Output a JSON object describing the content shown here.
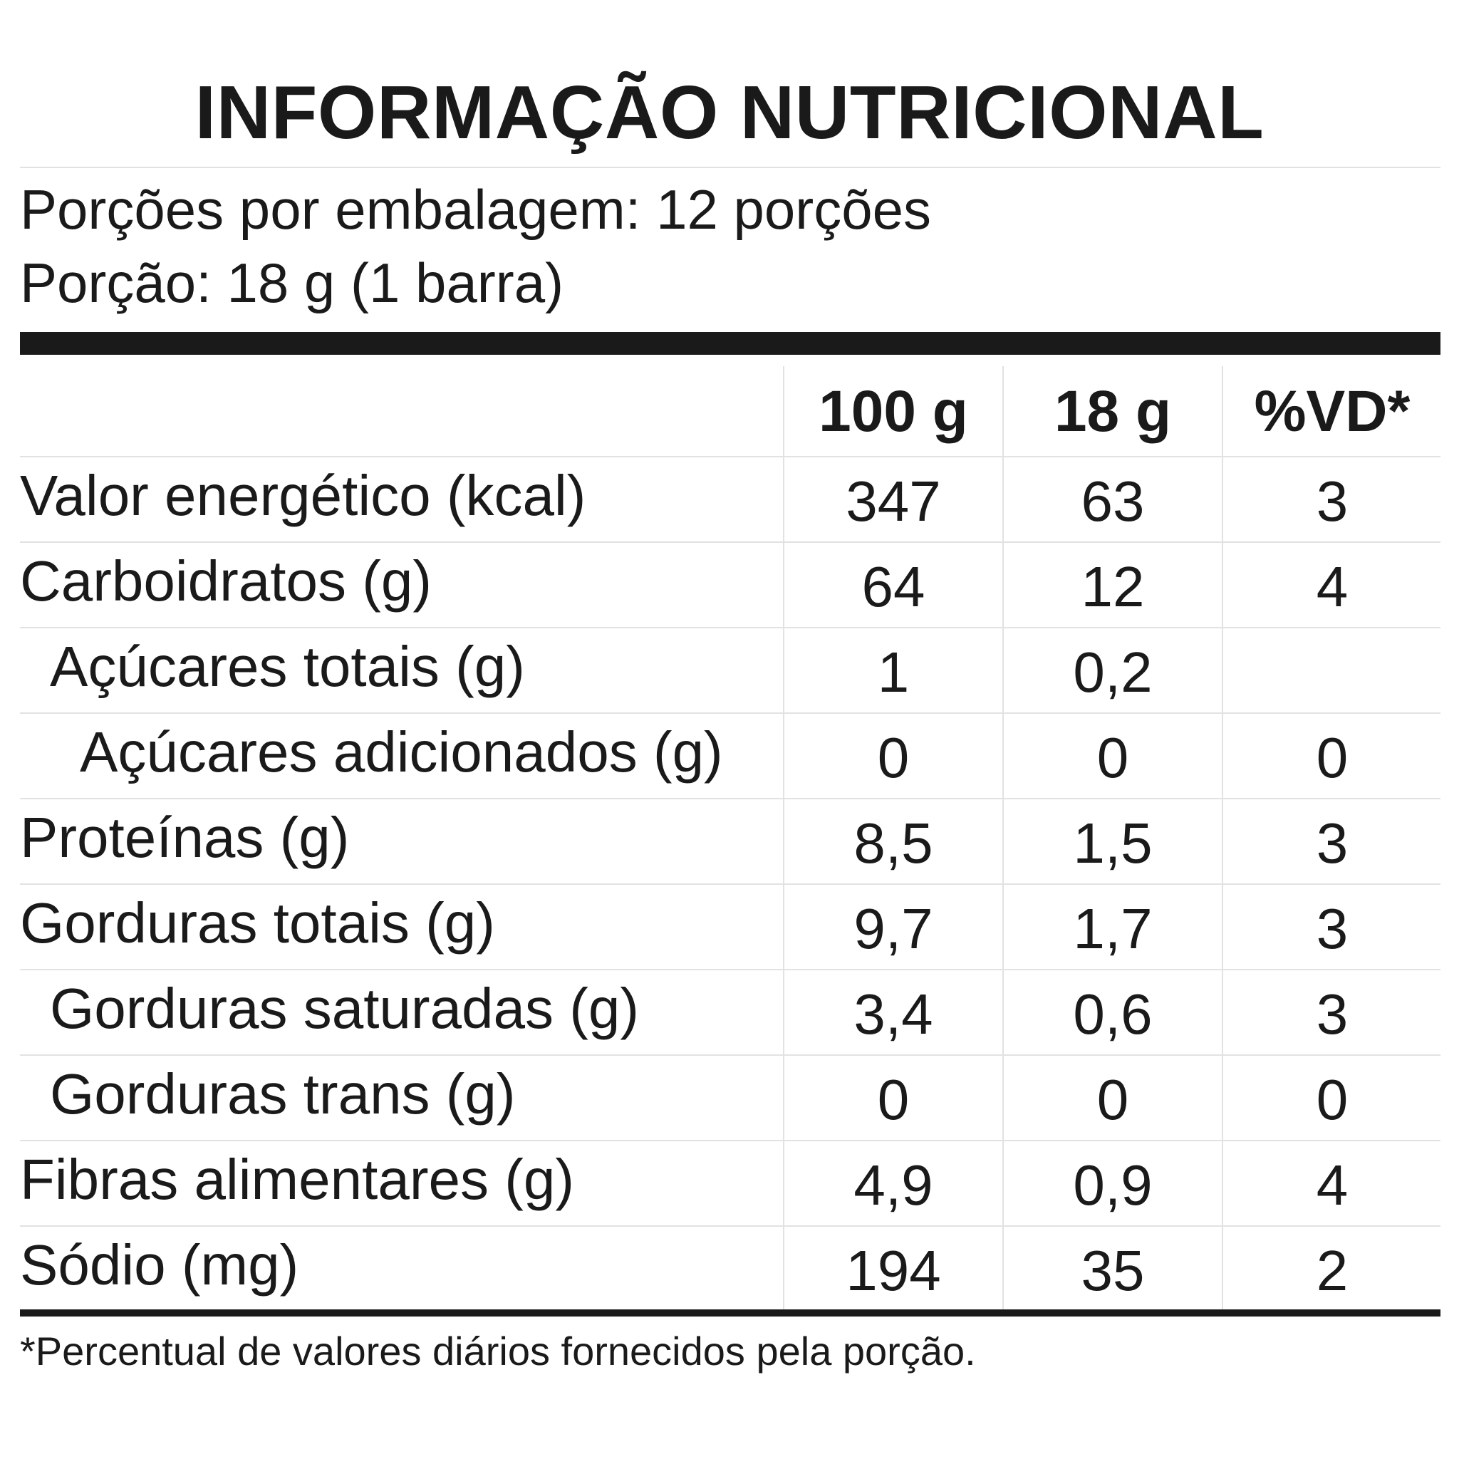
{
  "title": "INFORMAÇÃO NUTRICIONAL",
  "serving": {
    "per_package": "Porções por embalagem: 12 porções",
    "portion": "Porção: 18 g (1 barra)"
  },
  "table": {
    "headers": [
      "100 g",
      "18 g",
      "%VD*"
    ],
    "rows": [
      {
        "label": "Valor energético (kcal)",
        "v100": "347",
        "vportion": "63",
        "vd": "3"
      },
      {
        "label": "Carboidratos (g)",
        "v100": "64",
        "vportion": "12",
        "vd": "4"
      },
      {
        "label": "Açúcares totais (g)",
        "v100": "1",
        "vportion": "0,2",
        "vd": ""
      },
      {
        "label": "Açúcares adicionados (g)",
        "v100": "0",
        "vportion": "0",
        "vd": "0"
      },
      {
        "label": "Proteínas (g)",
        "v100": "8,5",
        "vportion": "1,5",
        "vd": "3"
      },
      {
        "label": "Gorduras totais (g)",
        "v100": "9,7",
        "vportion": "1,7",
        "vd": "3"
      },
      {
        "label": "Gorduras saturadas (g)",
        "v100": "3,4",
        "vportion": "0,6",
        "vd": "3"
      },
      {
        "label": "Gorduras trans (g)",
        "v100": "0",
        "vportion": "0",
        "vd": "0"
      },
      {
        "label": "Fibras alimentares (g)",
        "v100": "4,9",
        "vportion": "0,9",
        "vd": "4"
      },
      {
        "label": "Sódio (mg)",
        "v100": "194",
        "vportion": "35",
        "vd": "2"
      }
    ]
  },
  "footnote": "*Percentual de valores diários fornecidos pela porção."
}
